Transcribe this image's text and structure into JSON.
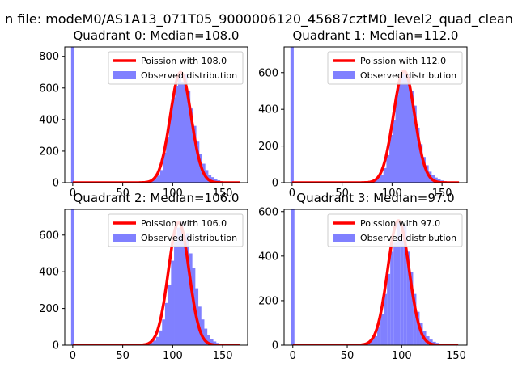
{
  "figure": {
    "suptitle": "n file: modeM0/AS1A13_071T05_9000006120_45687cztM0_level2_quad_clean"
  },
  "chart_data": [
    {
      "type": "bar",
      "title": "Quadrant 0: Median=108.0",
      "median": 108.0,
      "xlim": [
        -8,
        175
      ],
      "ylim": [
        0,
        860
      ],
      "xticks": [
        0,
        50,
        100,
        150
      ],
      "yticks": [
        0,
        200,
        400,
        600,
        800
      ],
      "bin_width": 3.3,
      "legend_position": "upper-right",
      "fit_color": "#ff0000",
      "hist_color": "#8080ff",
      "series": [
        {
          "name": "Poission with 108.0",
          "kind": "line"
        },
        {
          "name": "Observed distribution",
          "kind": "histogram"
        }
      ],
      "zero_bin": 860,
      "bin_centers": [
        68,
        71,
        74,
        77,
        80,
        83,
        86,
        89,
        92,
        95,
        98,
        101,
        104,
        107,
        110,
        113,
        116,
        119,
        122,
        125,
        128,
        131,
        134,
        137,
        140,
        143,
        146,
        149,
        152,
        155,
        158
      ],
      "values": [
        2,
        4,
        6,
        10,
        15,
        30,
        45,
        80,
        190,
        290,
        420,
        540,
        610,
        700,
        640,
        690,
        580,
        470,
        360,
        260,
        180,
        120,
        80,
        50,
        35,
        22,
        15,
        10,
        6,
        4,
        2
      ]
    },
    {
      "type": "bar",
      "title": "Quadrant 1: Median=112.0",
      "median": 112.0,
      "xlim": [
        -8,
        175
      ],
      "ylim": [
        0,
        740
      ],
      "xticks": [
        0,
        50,
        100,
        150
      ],
      "yticks": [
        0,
        200,
        400,
        600
      ],
      "bin_width": 3.3,
      "legend_position": "upper-right",
      "fit_color": "#ff0000",
      "hist_color": "#8080ff",
      "series": [
        {
          "name": "Poission with 112.0",
          "kind": "line"
        },
        {
          "name": "Observed distribution",
          "kind": "histogram"
        }
      ],
      "zero_bin": 740,
      "bin_centers": [
        72,
        75,
        78,
        81,
        84,
        87,
        90,
        93,
        96,
        99,
        102,
        105,
        108,
        111,
        114,
        117,
        120,
        123,
        126,
        129,
        132,
        135,
        138,
        141,
        144,
        147,
        150,
        153,
        156,
        159,
        162
      ],
      "values": [
        2,
        4,
        6,
        10,
        15,
        25,
        40,
        80,
        150,
        260,
        340,
        480,
        560,
        610,
        580,
        590,
        500,
        420,
        300,
        210,
        140,
        95,
        60,
        40,
        28,
        18,
        12,
        8,
        5,
        3,
        2
      ]
    },
    {
      "type": "bar",
      "title": "Quadrant 2: Median=106.0",
      "median": 106.0,
      "xlim": [
        -8,
        175
      ],
      "ylim": [
        0,
        740
      ],
      "xticks": [
        0,
        50,
        100,
        150
      ],
      "yticks": [
        0,
        200,
        400,
        600
      ],
      "bin_width": 3.3,
      "legend_position": "upper-right",
      "fit_color": "#ff0000",
      "hist_color": "#8080ff",
      "series": [
        {
          "name": "Poission with 106.0",
          "kind": "line"
        },
        {
          "name": "Observed distribution",
          "kind": "histogram"
        }
      ],
      "zero_bin": 740,
      "bin_centers": [
        70,
        73,
        76,
        79,
        82,
        85,
        88,
        91,
        94,
        97,
        100,
        103,
        106,
        109,
        112,
        115,
        118,
        121,
        124,
        127,
        130,
        133,
        136,
        139,
        142,
        145,
        148,
        151
      ],
      "values": [
        2,
        4,
        8,
        14,
        25,
        45,
        80,
        140,
        230,
        330,
        460,
        560,
        640,
        670,
        600,
        610,
        500,
        420,
        310,
        210,
        140,
        90,
        55,
        35,
        20,
        12,
        6,
        3
      ]
    },
    {
      "type": "bar",
      "title": "Quadrant 3: Median=97.0",
      "median": 97.0,
      "xlim": [
        -8,
        160
      ],
      "ylim": [
        0,
        610
      ],
      "xticks": [
        0,
        50,
        100,
        150
      ],
      "yticks": [
        0,
        200,
        400,
        600
      ],
      "bin_width": 3.0,
      "legend_position": "upper-right",
      "fit_color": "#ff0000",
      "hist_color": "#8080ff",
      "series": [
        {
          "name": "Poission with 97.0",
          "kind": "line"
        },
        {
          "name": "Observed distribution",
          "kind": "histogram"
        }
      ],
      "zero_bin": 610,
      "bin_centers": [
        58,
        61,
        64,
        67,
        70,
        73,
        76,
        79,
        82,
        85,
        88,
        91,
        94,
        97,
        100,
        103,
        106,
        109,
        112,
        115,
        118,
        121,
        124,
        127,
        130,
        133,
        136,
        139,
        142
      ],
      "values": [
        2,
        4,
        6,
        10,
        15,
        25,
        40,
        80,
        140,
        230,
        320,
        420,
        460,
        560,
        470,
        540,
        420,
        330,
        230,
        150,
        100,
        65,
        40,
        25,
        15,
        10,
        6,
        3,
        2
      ]
    }
  ]
}
